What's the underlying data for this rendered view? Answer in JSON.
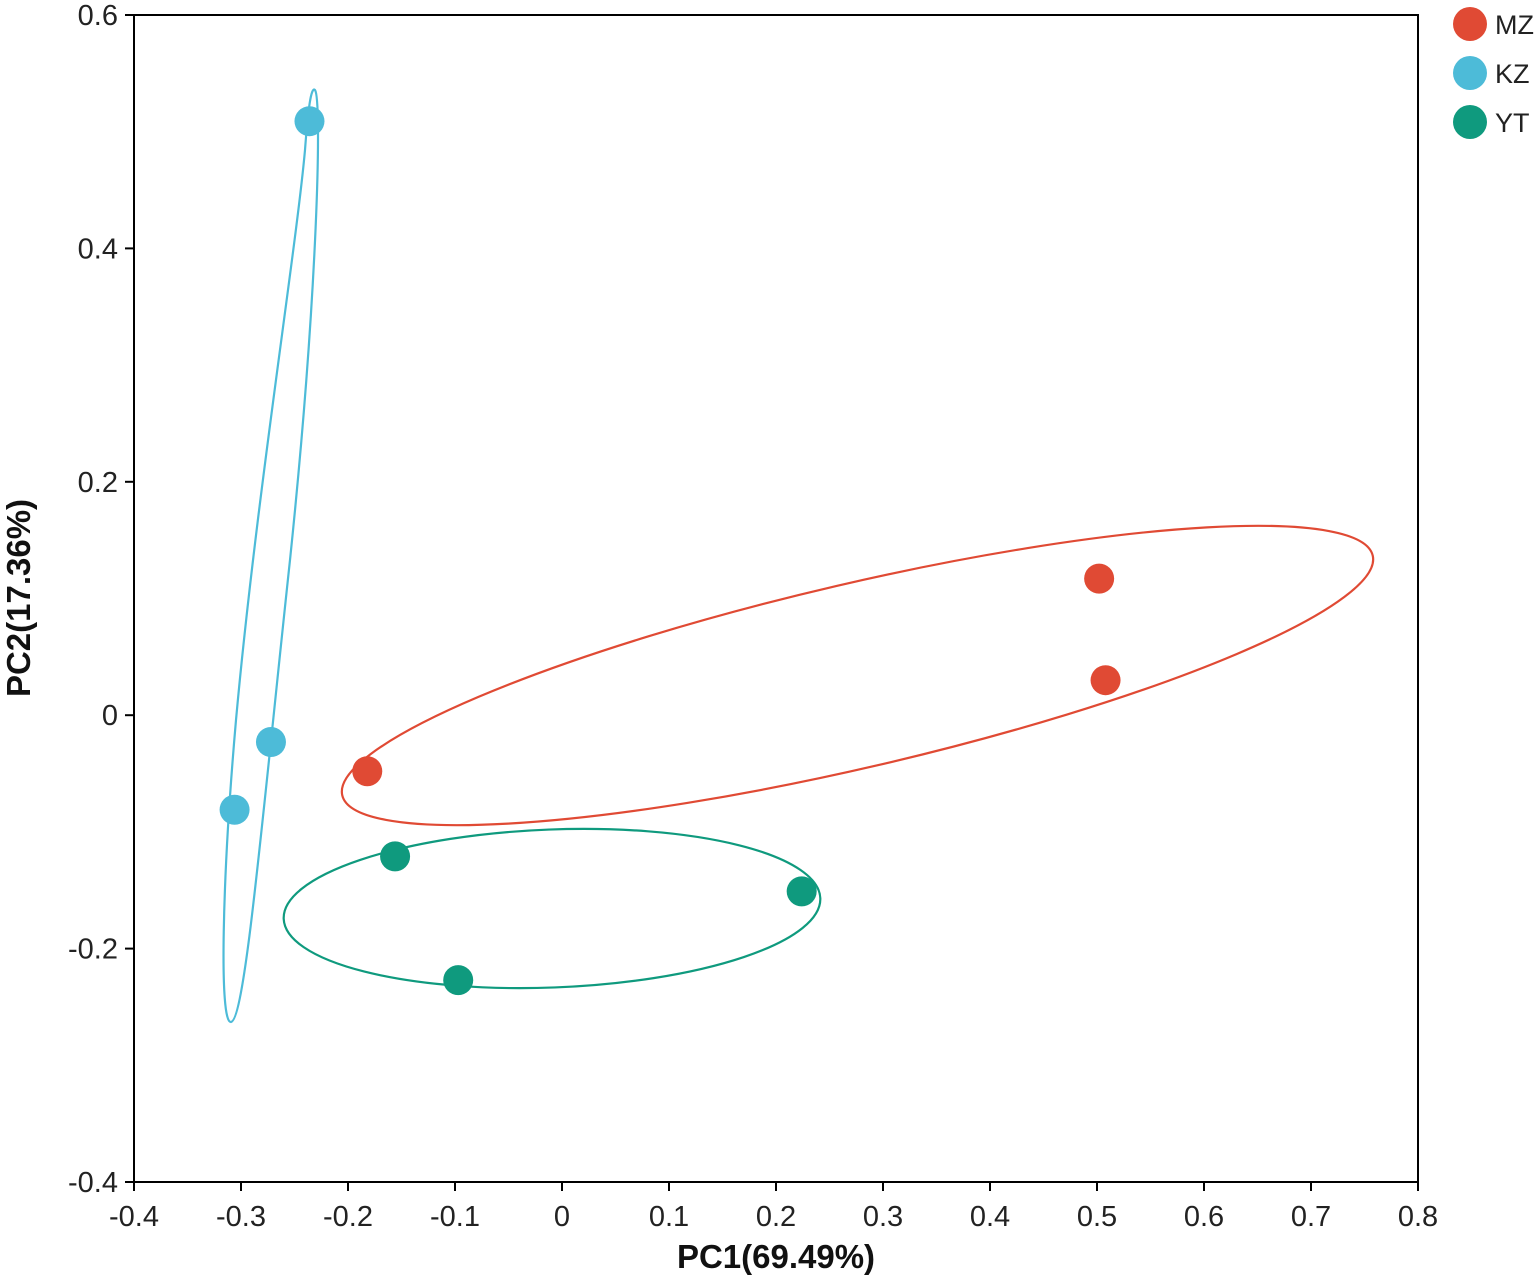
{
  "chart_data": {
    "type": "scatter",
    "xlabel": "PC1(69.49%)",
    "ylabel": "PC2(17.36%)",
    "xlim": [
      -0.4,
      0.8
    ],
    "ylim": [
      -0.4,
      0.6
    ],
    "x_ticks": [
      -0.4,
      -0.3,
      -0.2,
      -0.1,
      0,
      0.1,
      0.2,
      0.3,
      0.4,
      0.5,
      0.6,
      0.7,
      0.8
    ],
    "y_ticks": [
      -0.4,
      -0.2,
      0,
      0.2,
      0.4,
      0.6
    ],
    "x_tick_labels": [
      "-0.4",
      "-0.3",
      "-0.2",
      "-0.1",
      "0",
      "0.1",
      "0.2",
      "0.3",
      "0.4",
      "0.5",
      "0.6",
      "0.7",
      "0.8"
    ],
    "y_tick_labels": [
      "-0.4",
      "-0.2",
      "0",
      "0.2",
      "0.4",
      "0.6"
    ],
    "grid": false,
    "legend_position": "top-right",
    "series": [
      {
        "name": "MZ",
        "color": "#e04a34",
        "points": [
          [
            -0.182,
            -0.048
          ],
          [
            0.502,
            0.117
          ],
          [
            0.508,
            0.03
          ]
        ]
      },
      {
        "name": "KZ",
        "color": "#4dbbd8",
        "points": [
          [
            -0.236,
            0.509
          ],
          [
            -0.272,
            -0.023
          ],
          [
            -0.306,
            -0.081
          ]
        ]
      },
      {
        "name": "YT",
        "color": "#0f9a7e",
        "points": [
          [
            -0.156,
            -0.121
          ],
          [
            0.224,
            -0.151
          ],
          [
            -0.097,
            -0.227
          ]
        ]
      }
    ]
  }
}
